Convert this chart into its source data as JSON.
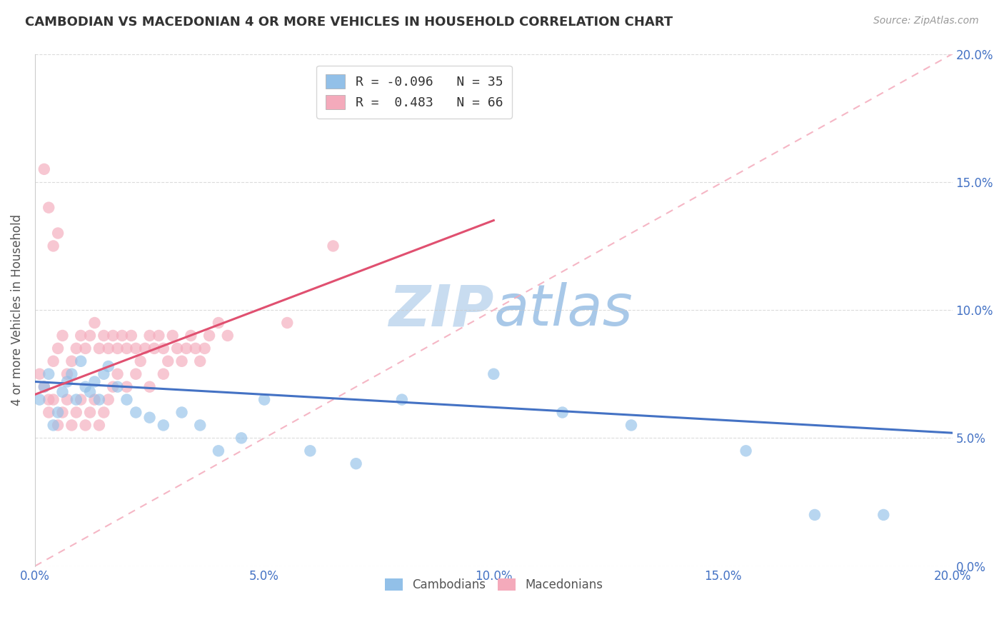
{
  "title": "CAMBODIAN VS MACEDONIAN 4 OR MORE VEHICLES IN HOUSEHOLD CORRELATION CHART",
  "source_text": "Source: ZipAtlas.com",
  "ylabel": "4 or more Vehicles in Household",
  "xlim": [
    0.0,
    0.2
  ],
  "ylim": [
    0.0,
    0.2
  ],
  "xtick_vals": [
    0.0,
    0.05,
    0.1,
    0.15,
    0.2
  ],
  "ytick_vals": [
    0.0,
    0.05,
    0.1,
    0.15,
    0.2
  ],
  "r_cambodian": -0.096,
  "n_cambodian": 35,
  "r_macedonian": 0.483,
  "n_macedonian": 66,
  "blue_dot_color": "#92C0E8",
  "pink_dot_color": "#F4AABB",
  "blue_line_color": "#4472C4",
  "pink_line_color": "#E05070",
  "diag_line_color": "#F4AABB",
  "grid_color": "#CCCCCC",
  "watermark_color": "#D5E8F5",
  "background_color": "#FFFFFF",
  "axis_tick_color": "#4472C4",
  "cambodian_x": [
    0.001,
    0.002,
    0.003,
    0.004,
    0.005,
    0.006,
    0.007,
    0.008,
    0.009,
    0.01,
    0.011,
    0.012,
    0.013,
    0.014,
    0.015,
    0.016,
    0.018,
    0.02,
    0.022,
    0.025,
    0.028,
    0.032,
    0.036,
    0.04,
    0.045,
    0.05,
    0.06,
    0.07,
    0.08,
    0.1,
    0.115,
    0.13,
    0.155,
    0.17,
    0.185
  ],
  "cambodian_y": [
    0.065,
    0.07,
    0.075,
    0.055,
    0.06,
    0.068,
    0.072,
    0.075,
    0.065,
    0.08,
    0.07,
    0.068,
    0.072,
    0.065,
    0.075,
    0.078,
    0.07,
    0.065,
    0.06,
    0.058,
    0.055,
    0.06,
    0.055,
    0.045,
    0.05,
    0.065,
    0.045,
    0.04,
    0.065,
    0.075,
    0.06,
    0.055,
    0.045,
    0.02,
    0.02
  ],
  "macedonian_x": [
    0.001,
    0.002,
    0.003,
    0.004,
    0.005,
    0.006,
    0.007,
    0.008,
    0.009,
    0.01,
    0.011,
    0.012,
    0.013,
    0.014,
    0.015,
    0.016,
    0.017,
    0.018,
    0.019,
    0.02,
    0.021,
    0.022,
    0.023,
    0.024,
    0.025,
    0.026,
    0.027,
    0.028,
    0.029,
    0.03,
    0.031,
    0.032,
    0.033,
    0.034,
    0.035,
    0.036,
    0.037,
    0.038,
    0.04,
    0.042,
    0.003,
    0.004,
    0.005,
    0.006,
    0.007,
    0.008,
    0.009,
    0.01,
    0.011,
    0.012,
    0.013,
    0.014,
    0.015,
    0.016,
    0.017,
    0.018,
    0.02,
    0.022,
    0.025,
    0.028,
    0.002,
    0.003,
    0.004,
    0.005,
    0.055,
    0.065
  ],
  "macedonian_y": [
    0.075,
    0.07,
    0.065,
    0.08,
    0.085,
    0.09,
    0.075,
    0.08,
    0.085,
    0.09,
    0.085,
    0.09,
    0.095,
    0.085,
    0.09,
    0.085,
    0.09,
    0.085,
    0.09,
    0.085,
    0.09,
    0.085,
    0.08,
    0.085,
    0.09,
    0.085,
    0.09,
    0.085,
    0.08,
    0.09,
    0.085,
    0.08,
    0.085,
    0.09,
    0.085,
    0.08,
    0.085,
    0.09,
    0.095,
    0.09,
    0.06,
    0.065,
    0.055,
    0.06,
    0.065,
    0.055,
    0.06,
    0.065,
    0.055,
    0.06,
    0.065,
    0.055,
    0.06,
    0.065,
    0.07,
    0.075,
    0.07,
    0.075,
    0.07,
    0.075,
    0.155,
    0.14,
    0.125,
    0.13,
    0.095,
    0.125
  ],
  "blue_trend_x0": 0.0,
  "blue_trend_y0": 0.072,
  "blue_trend_x1": 0.2,
  "blue_trend_y1": 0.052,
  "pink_trend_x0": 0.0,
  "pink_trend_y0": 0.067,
  "pink_trend_x1": 0.1,
  "pink_trend_y1": 0.135
}
